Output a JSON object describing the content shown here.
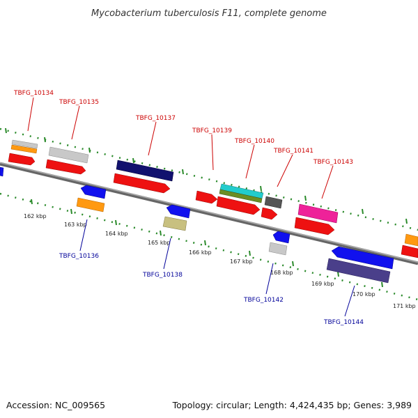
{
  "title": "Mycobacterium tuberculosis F11, complete genome",
  "footer": {
    "accession": "Accession: NC_009565",
    "topology": "Topology: circular; Length: 4,424,435 bp; Genes: 3,989"
  },
  "kbp_labels": [
    "162 kbp",
    "163 kbp",
    "164 kbp",
    "165 kbp",
    "166 kbp",
    "167 kbp",
    "168 kbp",
    "169 kbp",
    "170 kbp",
    "171 kbp"
  ],
  "top_labels": [
    "TBFG_10134",
    "TBFG_10135",
    "TBFG_10137",
    "TBFG_10139",
    "TBFG_10140",
    "TBFG_10141",
    "TBFG_10143"
  ],
  "bottom_labels": [
    "TBFG_10136",
    "TBFG_10138",
    "TBFG_10142",
    "TBFG_10144"
  ],
  "colors": {
    "red": "#ee1111",
    "blue": "#1111ee",
    "orange": "#ff9911",
    "gray": "#c8c8c8",
    "navy": "#11116e",
    "cyan": "#22cccc",
    "olive": "#6b8e23",
    "pink": "#ee2299",
    "khaki": "#c8c080",
    "purple": "#4a3f8a",
    "darkgray": "#555555",
    "backbone": "#888888",
    "tick": "#2a8a2a"
  }
}
